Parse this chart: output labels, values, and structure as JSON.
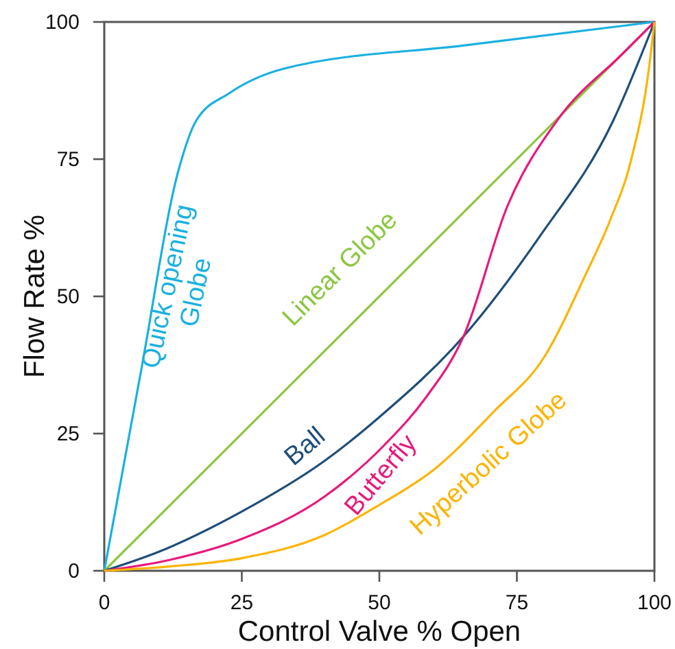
{
  "chart_data": {
    "type": "line",
    "xlabel": "Control Valve % Open",
    "ylabel": "Flow Rate %",
    "xlim": [
      0,
      100
    ],
    "ylim": [
      0,
      100
    ],
    "xticks": [
      0,
      25,
      50,
      75,
      100
    ],
    "yticks": [
      0,
      25,
      50,
      75,
      100
    ],
    "grid": false,
    "marker": "none",
    "line_style": "solid",
    "series": [
      {
        "name": "Quick opening\nGlobe",
        "color": "#1ab0e0",
        "x": [
          0,
          6.7,
          13.5,
          16.7,
          22.7,
          32.7,
          66,
          100
        ],
        "values": [
          0,
          36.5,
          73,
          82,
          87,
          91.5,
          95.8,
          100
        ]
      },
      {
        "name": "Linear Globe",
        "color": "#8cc63f",
        "x": [
          0,
          100
        ],
        "values": [
          0,
          100
        ]
      },
      {
        "name": "Ball",
        "color": "#1f4e79",
        "x": [
          0,
          10,
          25,
          40,
          50,
          65.3,
          79,
          92.5,
          100
        ],
        "values": [
          0,
          3.5,
          10.8,
          20,
          28,
          42.7,
          60.7,
          82,
          100
        ]
      },
      {
        "name": "Butterfly",
        "color": "#e8197a",
        "x": [
          0,
          12,
          25,
          40,
          51,
          58.4,
          65.3,
          73.3,
          82.5,
          94,
          100
        ],
        "values": [
          0,
          2,
          5.8,
          13.5,
          23,
          31.5,
          42.7,
          66.5,
          82.3,
          94,
          100
        ]
      },
      {
        "name": "Hyperbolic Globe",
        "color": "#fbb400",
        "x": [
          0,
          12,
          25,
          40,
          50,
          60,
          70.8,
          80,
          87.5,
          92,
          95.8,
          99,
          100
        ],
        "values": [
          0,
          0.8,
          2.3,
          6.5,
          12,
          18.5,
          29,
          39,
          54,
          64,
          75,
          91.5,
          100
        ]
      }
    ]
  }
}
